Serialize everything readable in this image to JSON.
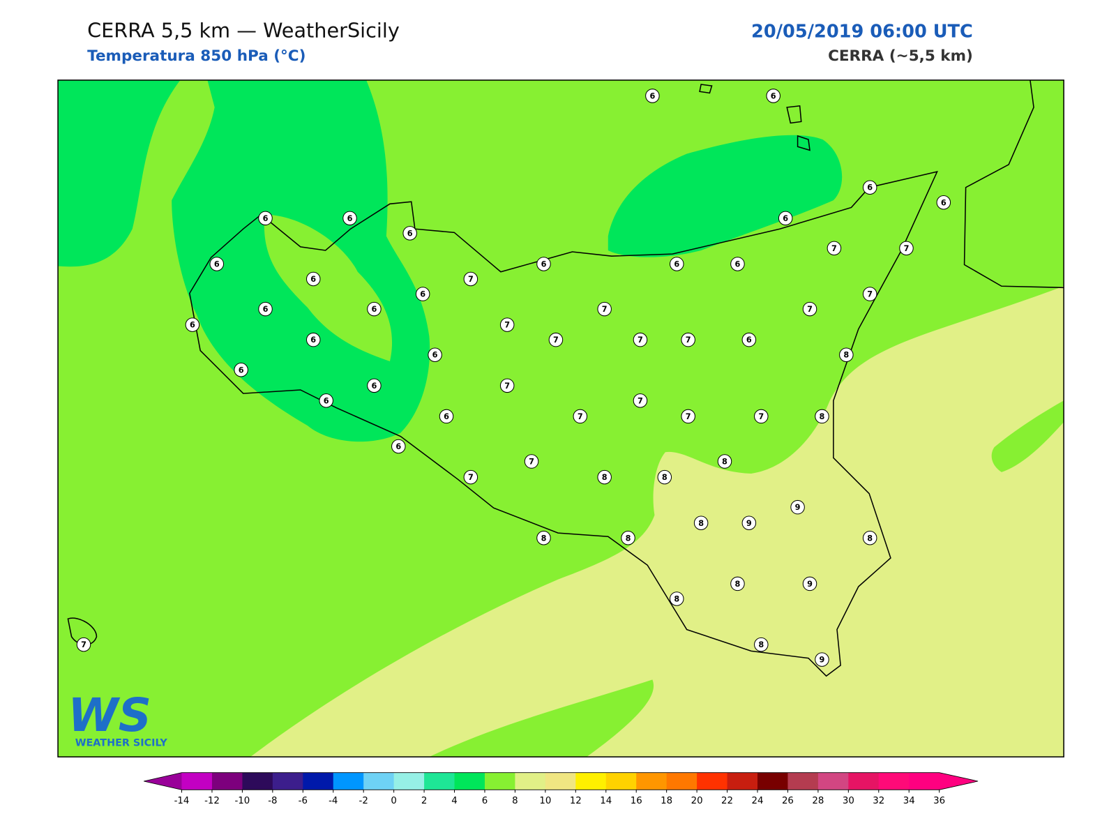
{
  "header": {
    "title": "CERRA 5,5 km — WeatherSicily",
    "subtitle": "Temperatura 850 hPa (°C)",
    "date": "20/05/2019 06:00 UTC",
    "model": "CERRA (~5,5 km)"
  },
  "logo": {
    "mark": "WS",
    "text": "WEATHER SICILY"
  },
  "stations": [
    6,
    6,
    6,
    6,
    6,
    6,
    6,
    6,
    6,
    6,
    6,
    6,
    7,
    7,
    6,
    7,
    6,
    7,
    6,
    6,
    7,
    7,
    6,
    7,
    6,
    7,
    7,
    7,
    6,
    8,
    6,
    6,
    6,
    7,
    6,
    7,
    6,
    7,
    7,
    7,
    8,
    6,
    8,
    7,
    7,
    8,
    8,
    9,
    8,
    9,
    8,
    8,
    8,
    8,
    9,
    8,
    7,
    8,
    9
  ],
  "colorbar": {
    "ticks": [
      -14,
      -12,
      -10,
      -8,
      -6,
      -4,
      -2,
      0,
      2,
      4,
      6,
      8,
      10,
      12,
      14,
      16,
      18,
      20,
      22,
      24,
      26,
      28,
      30,
      32,
      34,
      36
    ],
    "colors": [
      "#990099",
      "#c300c3",
      "#7d007d",
      "#2d0a5a",
      "#3c1e8c",
      "#0019aa",
      "#0096ff",
      "#6ed2f5",
      "#96f0e6",
      "#1ee696",
      "#00e65a",
      "#87f032",
      "#e1f087",
      "#f0e682",
      "#fff000",
      "#ffd200",
      "#ff9600",
      "#ff7800",
      "#ff3200",
      "#c81e0f",
      "#780000",
      "#b43c50",
      "#d24682",
      "#e61464",
      "#ff0a78",
      "#ff0080"
    ]
  }
}
